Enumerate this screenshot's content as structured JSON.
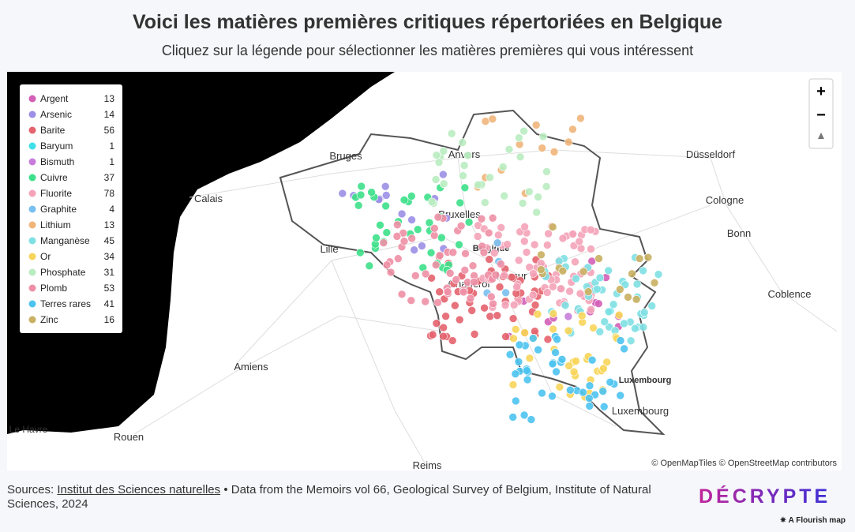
{
  "header": {
    "title": "Voici les matières premières critiques répertoriées en Belgique",
    "subtitle": "Cliquez sur la légende pour sélectionner les matières premières qui vous intéressent"
  },
  "map": {
    "labels": [
      "Bruges",
      "Anvers",
      "Düsseldorf",
      "Calais",
      "Bruxelles",
      "Cologne",
      "Bonn",
      "Lille",
      "Belgique",
      "Namur",
      "Charleroi",
      "Coblence",
      "Luxembourg",
      "Luxembourg",
      "Amiens",
      "Le Havre",
      "Rouen",
      "Reims"
    ],
    "legend": {
      "items": [
        {
          "name": "Argent",
          "count": 13,
          "color": "#d35fb7"
        },
        {
          "name": "Arsenic",
          "count": 14,
          "color": "#9b8fe6"
        },
        {
          "name": "Barite",
          "count": 56,
          "color": "#e4636e"
        },
        {
          "name": "Baryum",
          "count": 1,
          "color": "#40e0e8"
        },
        {
          "name": "Bismuth",
          "count": 1,
          "color": "#c77ddb"
        },
        {
          "name": "Cuivre",
          "count": 37,
          "color": "#3de08a"
        },
        {
          "name": "Fluorite",
          "count": 78,
          "color": "#f4a3b8"
        },
        {
          "name": "Graphite",
          "count": 4,
          "color": "#79c0f0"
        },
        {
          "name": "Lithium",
          "count": 13,
          "color": "#f0b57a"
        },
        {
          "name": "Manganèse",
          "count": 45,
          "color": "#7fe0e3"
        },
        {
          "name": "Or",
          "count": 34,
          "color": "#f7d55a"
        },
        {
          "name": "Phosphate",
          "count": 31,
          "color": "#b9ecc0"
        },
        {
          "name": "Plomb",
          "count": 53,
          "color": "#ee8fa5"
        },
        {
          "name": "Terres rares",
          "count": 41,
          "color": "#4cc3f0"
        },
        {
          "name": "Zinc",
          "count": 16,
          "color": "#c9b062"
        }
      ]
    },
    "zoom_in": "+",
    "zoom_out": "−",
    "attribution": "© OpenMapTiles © OpenStreetMap contributors"
  },
  "footer": {
    "sources_label": "Sources:",
    "source_link": "Institut des Sciences naturelles",
    "source_text": "• Data from the Memoirs vol 66, Geological Survey of Belgium, Institute of Natural Sciences, 2024",
    "brand": "DÉCRYPTE",
    "flourish": "A Flourish map"
  }
}
